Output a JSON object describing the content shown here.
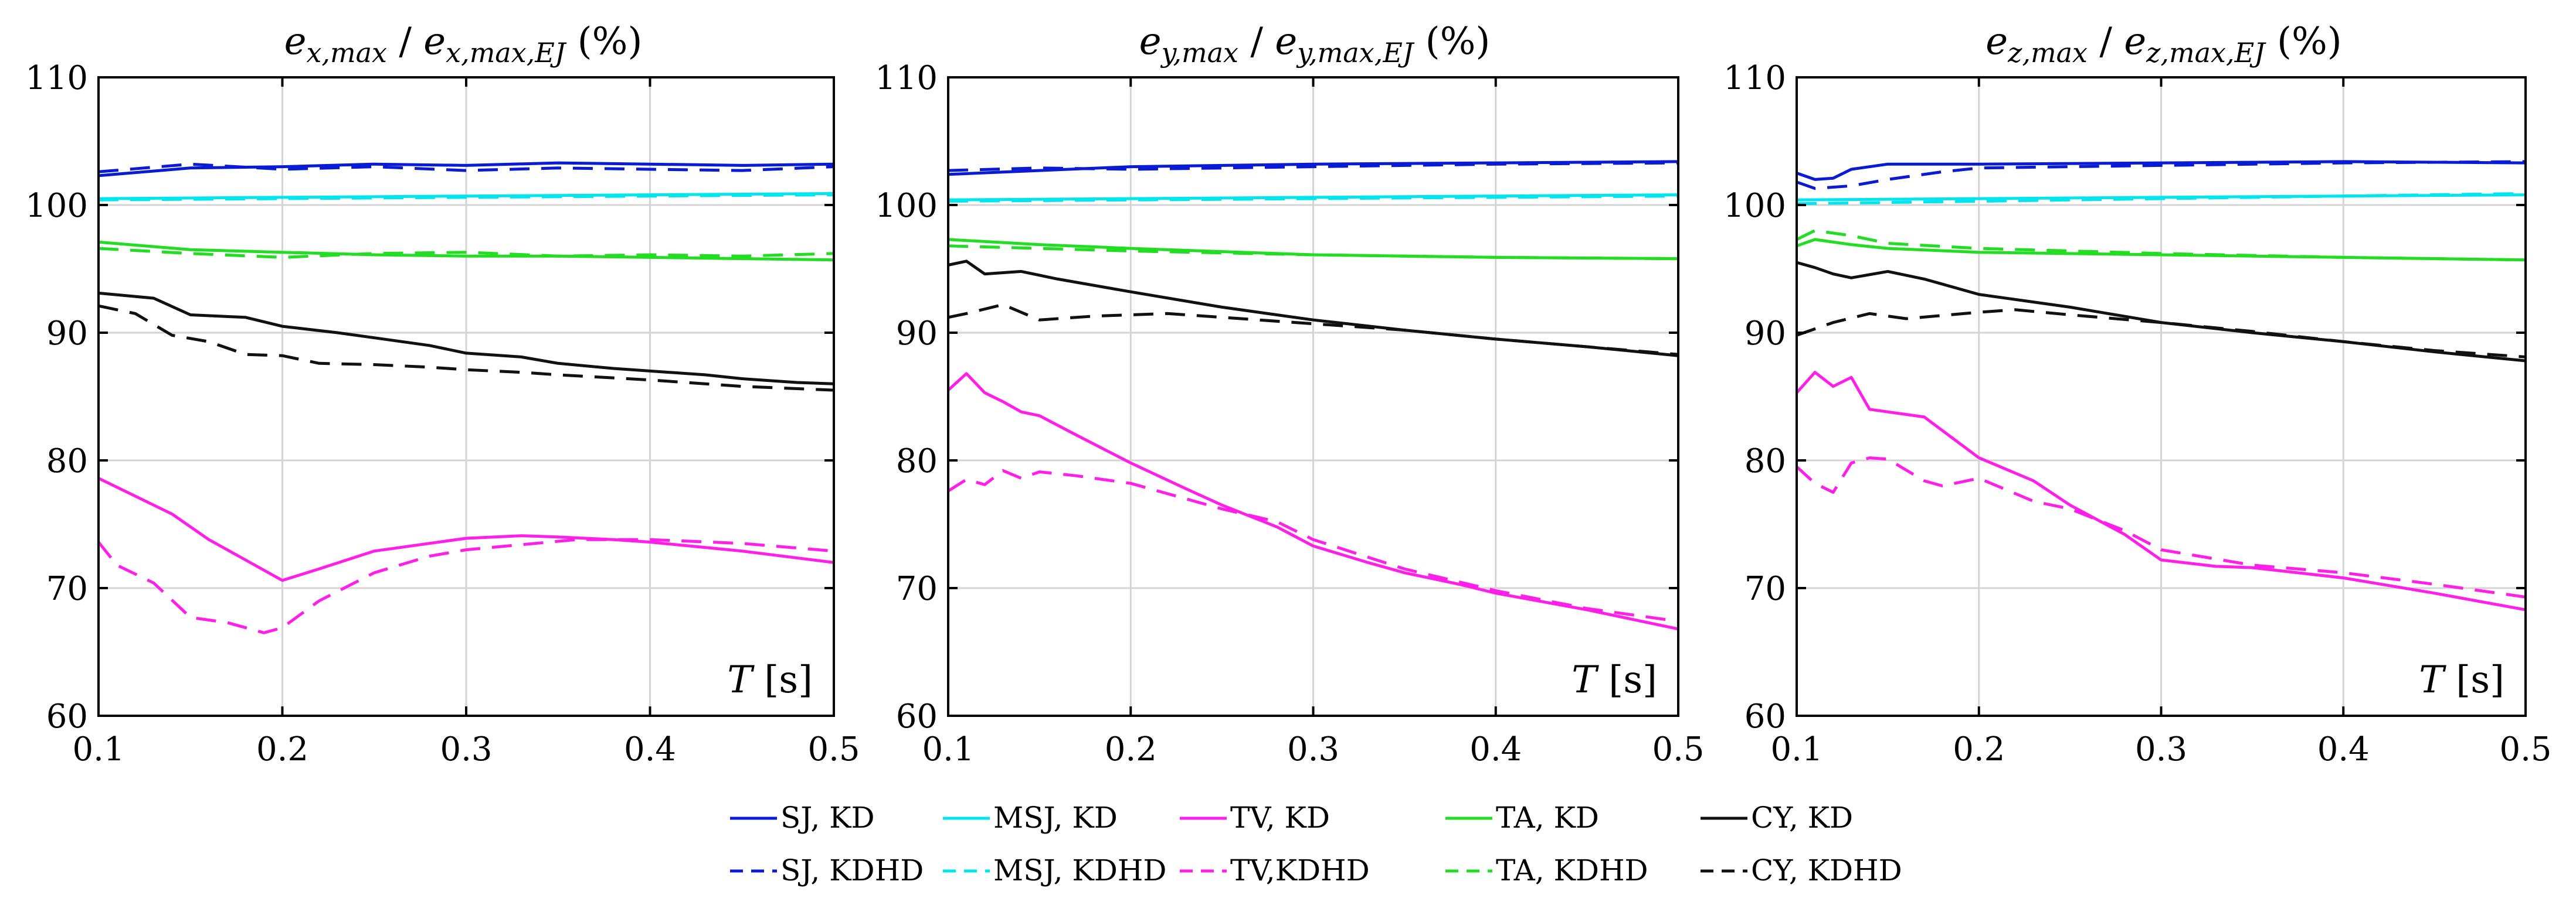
{
  "chart_data": [
    {
      "type": "line",
      "title": {
        "main": "e",
        "sub1": "x,max",
        "sep": " / ",
        "main2": "e",
        "sub2": "x,max,EJ",
        "suffix": " (%)"
      },
      "xlabel": {
        "var": "T",
        "unit": " [s]"
      },
      "xlim": [
        0.1,
        0.5
      ],
      "ylim": [
        60,
        110
      ],
      "xticks": [
        "0.1",
        "0.2",
        "0.3",
        "0.4",
        "0.5"
      ],
      "yticks": [
        "60",
        "70",
        "80",
        "90",
        "100",
        "110"
      ],
      "grid": true,
      "series": [
        {
          "name": "SJ, KD",
          "color": "#0a1bd6",
          "dash": "solid",
          "x": [
            0.1,
            0.15,
            0.2,
            0.25,
            0.3,
            0.35,
            0.4,
            0.45,
            0.5
          ],
          "y": [
            102.3,
            102.9,
            103.0,
            103.2,
            103.1,
            103.3,
            103.2,
            103.1,
            103.2
          ]
        },
        {
          "name": "SJ, KDHD",
          "color": "#0a1bd6",
          "dash": "dashed",
          "x": [
            0.1,
            0.15,
            0.2,
            0.25,
            0.3,
            0.35,
            0.4,
            0.45,
            0.5
          ],
          "y": [
            102.6,
            103.2,
            102.8,
            103.0,
            102.7,
            102.9,
            102.8,
            102.7,
            103.0
          ]
        },
        {
          "name": "MSJ, KD",
          "color": "#00e5ee",
          "dash": "solid",
          "x": [
            0.1,
            0.2,
            0.3,
            0.4,
            0.5
          ],
          "y": [
            100.5,
            100.6,
            100.7,
            100.8,
            100.9
          ]
        },
        {
          "name": "MSJ, KDHD",
          "color": "#00e5ee",
          "dash": "dashed",
          "x": [
            0.1,
            0.2,
            0.3,
            0.4,
            0.5
          ],
          "y": [
            100.4,
            100.5,
            100.6,
            100.7,
            100.8
          ]
        },
        {
          "name": "TA, KD",
          "color": "#22dd22",
          "dash": "solid",
          "x": [
            0.1,
            0.15,
            0.2,
            0.25,
            0.3,
            0.35,
            0.4,
            0.45,
            0.5
          ],
          "y": [
            97.1,
            96.5,
            96.3,
            96.1,
            96.0,
            96.0,
            95.9,
            95.8,
            95.7
          ]
        },
        {
          "name": "TA, KDHD",
          "color": "#22dd22",
          "dash": "dashed",
          "x": [
            0.1,
            0.15,
            0.2,
            0.25,
            0.3,
            0.35,
            0.4,
            0.45,
            0.5
          ],
          "y": [
            96.6,
            96.2,
            95.9,
            96.2,
            96.3,
            96.0,
            96.1,
            96.0,
            96.2
          ]
        },
        {
          "name": "CY, KD",
          "color": "#111111",
          "dash": "solid",
          "x": [
            0.1,
            0.13,
            0.15,
            0.18,
            0.2,
            0.23,
            0.25,
            0.28,
            0.3,
            0.33,
            0.35,
            0.38,
            0.4,
            0.43,
            0.45,
            0.48,
            0.5
          ],
          "y": [
            93.1,
            92.7,
            91.4,
            91.2,
            90.5,
            90.0,
            89.6,
            89.0,
            88.4,
            88.1,
            87.6,
            87.2,
            87.0,
            86.7,
            86.4,
            86.1,
            86.0
          ]
        },
        {
          "name": "CY, KDHD",
          "color": "#111111",
          "dash": "dashed",
          "x": [
            0.1,
            0.12,
            0.14,
            0.16,
            0.18,
            0.2,
            0.22,
            0.25,
            0.28,
            0.3,
            0.33,
            0.35,
            0.4,
            0.45,
            0.5
          ],
          "y": [
            92.1,
            91.5,
            89.8,
            89.3,
            88.3,
            88.2,
            87.6,
            87.5,
            87.3,
            87.1,
            86.9,
            86.7,
            86.3,
            85.8,
            85.5
          ]
        },
        {
          "name": "TV, KD",
          "color": "#ff1fe8",
          "dash": "solid",
          "x": [
            0.1,
            0.12,
            0.14,
            0.16,
            0.18,
            0.2,
            0.22,
            0.25,
            0.28,
            0.3,
            0.33,
            0.35,
            0.38,
            0.4,
            0.45,
            0.5
          ],
          "y": [
            78.6,
            77.2,
            75.8,
            73.8,
            72.2,
            70.6,
            71.5,
            72.9,
            73.5,
            73.9,
            74.1,
            74.0,
            73.8,
            73.6,
            72.9,
            72.0
          ]
        },
        {
          "name": "TV,KDHD",
          "color": "#ff1fe8",
          "dash": "dashed",
          "x": [
            0.1,
            0.11,
            0.13,
            0.15,
            0.17,
            0.19,
            0.2,
            0.22,
            0.25,
            0.28,
            0.3,
            0.33,
            0.36,
            0.4,
            0.45,
            0.5
          ],
          "y": [
            73.6,
            71.8,
            70.4,
            67.7,
            67.3,
            66.5,
            66.9,
            69.0,
            71.2,
            72.5,
            73.0,
            73.4,
            73.8,
            73.8,
            73.5,
            72.9
          ]
        }
      ]
    },
    {
      "type": "line",
      "title": {
        "main": "e",
        "sub1": "y,max",
        "sep": " / ",
        "main2": "e",
        "sub2": "y,max,EJ",
        "suffix": " (%)"
      },
      "xlabel": {
        "var": "T",
        "unit": " [s]"
      },
      "xlim": [
        0.1,
        0.5
      ],
      "ylim": [
        60,
        110
      ],
      "xticks": [
        "0.1",
        "0.2",
        "0.3",
        "0.4",
        "0.5"
      ],
      "yticks": [
        "60",
        "70",
        "80",
        "90",
        "100",
        "110"
      ],
      "grid": true,
      "series": [
        {
          "name": "SJ, KD",
          "color": "#0a1bd6",
          "dash": "solid",
          "x": [
            0.1,
            0.15,
            0.2,
            0.3,
            0.4,
            0.5
          ],
          "y": [
            102.4,
            102.7,
            103.0,
            103.2,
            103.3,
            103.4
          ]
        },
        {
          "name": "SJ, KDHD",
          "color": "#0a1bd6",
          "dash": "dashed",
          "x": [
            0.1,
            0.15,
            0.2,
            0.3,
            0.4,
            0.5
          ],
          "y": [
            102.7,
            102.9,
            102.8,
            103.0,
            103.2,
            103.3
          ]
        },
        {
          "name": "MSJ, KD",
          "color": "#00e5ee",
          "dash": "solid",
          "x": [
            0.1,
            0.2,
            0.3,
            0.4,
            0.5
          ],
          "y": [
            100.4,
            100.5,
            100.6,
            100.7,
            100.8
          ]
        },
        {
          "name": "MSJ, KDHD",
          "color": "#00e5ee",
          "dash": "dashed",
          "x": [
            0.1,
            0.2,
            0.3,
            0.4,
            0.5
          ],
          "y": [
            100.3,
            100.4,
            100.5,
            100.6,
            100.7
          ]
        },
        {
          "name": "TA, KD",
          "color": "#22dd22",
          "dash": "solid",
          "x": [
            0.1,
            0.15,
            0.2,
            0.3,
            0.4,
            0.5
          ],
          "y": [
            97.3,
            96.9,
            96.6,
            96.1,
            95.9,
            95.8
          ]
        },
        {
          "name": "TA, KDHD",
          "color": "#22dd22",
          "dash": "dashed",
          "x": [
            0.1,
            0.15,
            0.2,
            0.3,
            0.4,
            0.5
          ],
          "y": [
            96.8,
            96.6,
            96.4,
            96.1,
            95.9,
            95.8
          ]
        },
        {
          "name": "CY, KD",
          "color": "#111111",
          "dash": "solid",
          "x": [
            0.1,
            0.11,
            0.12,
            0.14,
            0.16,
            0.2,
            0.25,
            0.3,
            0.35,
            0.4,
            0.45,
            0.5
          ],
          "y": [
            95.3,
            95.6,
            94.6,
            94.8,
            94.2,
            93.2,
            92.0,
            91.0,
            90.2,
            89.5,
            88.9,
            88.2
          ]
        },
        {
          "name": "CY, KDHD",
          "color": "#111111",
          "dash": "dashed",
          "x": [
            0.1,
            0.11,
            0.13,
            0.15,
            0.18,
            0.2,
            0.22,
            0.25,
            0.3,
            0.35,
            0.4,
            0.45,
            0.5
          ],
          "y": [
            91.2,
            91.5,
            92.2,
            91.0,
            91.3,
            91.4,
            91.5,
            91.2,
            90.7,
            90.2,
            89.5,
            88.9,
            88.3
          ]
        },
        {
          "name": "TV, KD",
          "color": "#ff1fe8",
          "dash": "solid",
          "x": [
            0.1,
            0.11,
            0.12,
            0.13,
            0.14,
            0.15,
            0.17,
            0.2,
            0.23,
            0.25,
            0.28,
            0.3,
            0.33,
            0.35,
            0.38,
            0.4,
            0.45,
            0.5
          ],
          "y": [
            85.5,
            86.8,
            85.3,
            84.6,
            83.8,
            83.5,
            82.0,
            79.8,
            77.8,
            76.5,
            74.8,
            73.3,
            72.0,
            71.2,
            70.3,
            69.6,
            68.3,
            66.8
          ]
        },
        {
          "name": "TV,KDHD",
          "color": "#ff1fe8",
          "dash": "dashed",
          "x": [
            0.1,
            0.11,
            0.12,
            0.13,
            0.14,
            0.15,
            0.17,
            0.2,
            0.23,
            0.25,
            0.28,
            0.3,
            0.35,
            0.4,
            0.45,
            0.5
          ],
          "y": [
            77.6,
            78.5,
            78.1,
            79.2,
            78.6,
            79.1,
            78.8,
            78.2,
            77.0,
            76.2,
            75.2,
            73.8,
            71.5,
            69.8,
            68.4,
            67.4
          ]
        }
      ]
    },
    {
      "type": "line",
      "title": {
        "main": "e",
        "sub1": "z,max",
        "sep": " / ",
        "main2": "e",
        "sub2": "z,max,EJ",
        "suffix": " (%)"
      },
      "xlabel": {
        "var": "T",
        "unit": " [s]"
      },
      "xlim": [
        0.1,
        0.5
      ],
      "ylim": [
        60,
        110
      ],
      "xticks": [
        "0.1",
        "0.2",
        "0.3",
        "0.4",
        "0.5"
      ],
      "yticks": [
        "60",
        "70",
        "80",
        "90",
        "100",
        "110"
      ],
      "grid": true,
      "series": [
        {
          "name": "SJ, KD",
          "color": "#0a1bd6",
          "dash": "solid",
          "x": [
            0.1,
            0.11,
            0.12,
            0.13,
            0.15,
            0.2,
            0.3,
            0.4,
            0.5
          ],
          "y": [
            102.5,
            102.0,
            102.1,
            102.8,
            103.2,
            103.2,
            103.3,
            103.4,
            103.3
          ]
        },
        {
          "name": "SJ, KDHD",
          "color": "#0a1bd6",
          "dash": "dashed",
          "x": [
            0.1,
            0.11,
            0.13,
            0.15,
            0.18,
            0.2,
            0.25,
            0.3,
            0.4,
            0.5
          ],
          "y": [
            101.8,
            101.3,
            101.5,
            102.0,
            102.6,
            102.9,
            103.0,
            103.1,
            103.3,
            103.4
          ]
        },
        {
          "name": "MSJ, KD",
          "color": "#00e5ee",
          "dash": "solid",
          "x": [
            0.1,
            0.2,
            0.3,
            0.4,
            0.5
          ],
          "y": [
            100.4,
            100.5,
            100.6,
            100.7,
            100.8
          ]
        },
        {
          "name": "MSJ, KDHD",
          "color": "#00e5ee",
          "dash": "dashed",
          "x": [
            0.1,
            0.2,
            0.3,
            0.4,
            0.5
          ],
          "y": [
            100.1,
            100.3,
            100.5,
            100.7,
            100.9
          ]
        },
        {
          "name": "TA, KD",
          "color": "#22dd22",
          "dash": "solid",
          "x": [
            0.1,
            0.11,
            0.13,
            0.15,
            0.2,
            0.3,
            0.4,
            0.5
          ],
          "y": [
            96.8,
            97.3,
            96.9,
            96.6,
            96.3,
            96.1,
            95.9,
            95.7
          ]
        },
        {
          "name": "TA, KDHD",
          "color": "#22dd22",
          "dash": "dashed",
          "x": [
            0.1,
            0.11,
            0.13,
            0.15,
            0.2,
            0.3,
            0.4,
            0.5
          ],
          "y": [
            97.3,
            98.0,
            97.6,
            97.0,
            96.6,
            96.2,
            95.9,
            95.7
          ]
        },
        {
          "name": "CY, KD",
          "color": "#111111",
          "dash": "solid",
          "x": [
            0.1,
            0.11,
            0.12,
            0.13,
            0.15,
            0.17,
            0.2,
            0.25,
            0.3,
            0.35,
            0.4,
            0.45,
            0.5
          ],
          "y": [
            95.5,
            95.1,
            94.6,
            94.3,
            94.8,
            94.2,
            93.0,
            92.0,
            90.8,
            90.0,
            89.3,
            88.5,
            87.8
          ]
        },
        {
          "name": "CY, KDHD",
          "color": "#111111",
          "dash": "dashed",
          "x": [
            0.1,
            0.12,
            0.14,
            0.16,
            0.2,
            0.22,
            0.25,
            0.3,
            0.35,
            0.4,
            0.45,
            0.5
          ],
          "y": [
            89.8,
            90.8,
            91.5,
            91.1,
            91.6,
            91.8,
            91.4,
            90.8,
            90.1,
            89.3,
            88.6,
            88.1
          ]
        },
        {
          "name": "TV, KD",
          "color": "#ff1fe8",
          "dash": "solid",
          "x": [
            0.1,
            0.11,
            0.12,
            0.13,
            0.14,
            0.15,
            0.17,
            0.2,
            0.23,
            0.25,
            0.28,
            0.3,
            0.33,
            0.35,
            0.4,
            0.45,
            0.5
          ],
          "y": [
            85.3,
            86.9,
            85.8,
            86.5,
            84.0,
            83.8,
            83.4,
            80.2,
            78.4,
            76.5,
            74.2,
            72.2,
            71.7,
            71.6,
            70.8,
            69.6,
            68.3
          ]
        },
        {
          "name": "TV,KDHD",
          "color": "#ff1fe8",
          "dash": "dashed",
          "x": [
            0.1,
            0.11,
            0.12,
            0.13,
            0.14,
            0.15,
            0.17,
            0.18,
            0.2,
            0.23,
            0.25,
            0.28,
            0.3,
            0.35,
            0.4,
            0.45,
            0.5
          ],
          "y": [
            79.5,
            78.2,
            77.5,
            79.8,
            80.2,
            80.1,
            78.4,
            78.0,
            78.6,
            76.8,
            76.2,
            74.5,
            73.0,
            71.8,
            71.2,
            70.3,
            69.3
          ]
        }
      ]
    }
  ],
  "legend": {
    "position": "bottom",
    "rows": [
      [
        {
          "label": "SJ, KD",
          "color": "#0a1bd6",
          "dash": "solid"
        },
        {
          "label": "MSJ, KD",
          "color": "#00e5ee",
          "dash": "solid"
        },
        {
          "label": "TV, KD",
          "color": "#ff1fe8",
          "dash": "solid"
        },
        {
          "label": "TA, KD",
          "color": "#22dd22",
          "dash": "solid"
        },
        {
          "label": "CY, KD",
          "color": "#111111",
          "dash": "solid"
        }
      ],
      [
        {
          "label": "SJ, KDHD",
          "color": "#0a1bd6",
          "dash": "dashed"
        },
        {
          "label": "MSJ, KDHD",
          "color": "#00e5ee",
          "dash": "dashed"
        },
        {
          "label": "TV,KDHD",
          "color": "#ff1fe8",
          "dash": "dashed"
        },
        {
          "label": "TA, KDHD",
          "color": "#22dd22",
          "dash": "dashed"
        },
        {
          "label": "CY, KDHD",
          "color": "#111111",
          "dash": "dashed"
        }
      ]
    ]
  }
}
